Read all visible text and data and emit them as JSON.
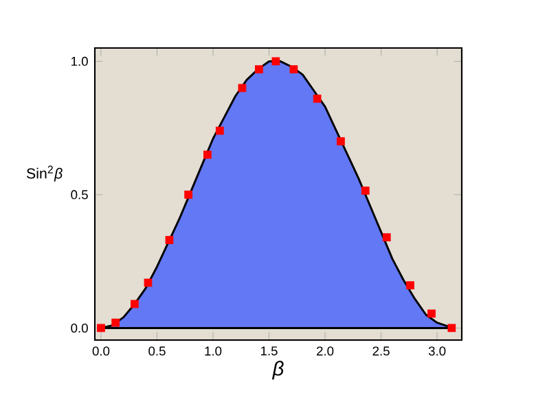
{
  "chart_data": {
    "type": "area",
    "xlabel": "β",
    "ylabel": "Sin$^{2}$*β*",
    "xlim": [
      -0.055,
      3.22
    ],
    "ylim": [
      -0.045,
      1.05
    ],
    "xticks": [
      {
        "value": 0,
        "label": "0.0"
      },
      {
        "value": 0.5,
        "label": "0.5"
      },
      {
        "value": 1,
        "label": "1.0"
      },
      {
        "value": 1.5,
        "label": "1.5"
      },
      {
        "value": 2,
        "label": "2.0"
      },
      {
        "value": 2.5,
        "label": "2.5"
      },
      {
        "value": 3,
        "label": "3.0"
      }
    ],
    "yticks": [
      {
        "value": 0,
        "label": "0.0"
      },
      {
        "value": 0.5,
        "label": "0.5"
      },
      {
        "value": 1,
        "label": "1.0"
      }
    ],
    "grid": false,
    "series": [
      {
        "color": "#6378f5",
        "x": [
          0,
          0.1,
          0.2,
          0.3,
          0.4,
          0.5,
          0.6,
          0.7,
          0.8,
          0.9,
          1.0,
          1.1,
          1.2,
          1.3,
          1.4,
          1.5,
          1.6,
          1.7,
          1.8,
          1.9,
          2.0,
          2.1,
          2.2,
          2.3,
          2.4,
          2.5,
          2.6,
          2.7,
          2.8,
          2.9,
          3.0,
          3.14
        ],
        "values": [
          0,
          0.01,
          0.04,
          0.09,
          0.15,
          0.23,
          0.32,
          0.41,
          0.51,
          0.61,
          0.71,
          0.79,
          0.87,
          0.93,
          0.97,
          1.0,
          1.0,
          0.98,
          0.95,
          0.89,
          0.83,
          0.74,
          0.65,
          0.56,
          0.46,
          0.36,
          0.26,
          0.18,
          0.11,
          0.05,
          0.02,
          0
        ]
      },
      {
        "type": "scatter",
        "color": "#ff0000",
        "marker": "square",
        "x": [
          0,
          0.13,
          0.3,
          0.42,
          0.61,
          0.78,
          0.95,
          1.06,
          1.26,
          1.41,
          1.56,
          1.72,
          1.93,
          2.14,
          2.36,
          2.55,
          2.76,
          2.95,
          3.13
        ],
        "values": [
          0,
          0.02,
          0.09,
          0.17,
          0.33,
          0.5,
          0.65,
          0.74,
          0.9,
          0.97,
          1.0,
          0.97,
          0.86,
          0.7,
          0.515,
          0.34,
          0.16,
          0.054,
          0
        ]
      }
    ]
  }
}
